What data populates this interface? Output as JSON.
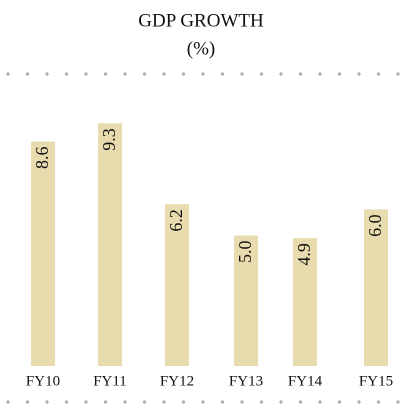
{
  "chart_data": {
    "type": "bar",
    "title": "GDP GROWTH",
    "subtitle": "(%)",
    "categories": [
      "FY10",
      "FY11",
      "FY12",
      "FY13",
      "FY14",
      "FY15"
    ],
    "values": [
      8.6,
      9.3,
      6.2,
      5.0,
      4.9,
      6.0
    ],
    "value_labels": [
      "8.6",
      "9.3",
      "6.2",
      "5.0",
      "4.9",
      "6.0"
    ],
    "color": "#e8dcae"
  }
}
